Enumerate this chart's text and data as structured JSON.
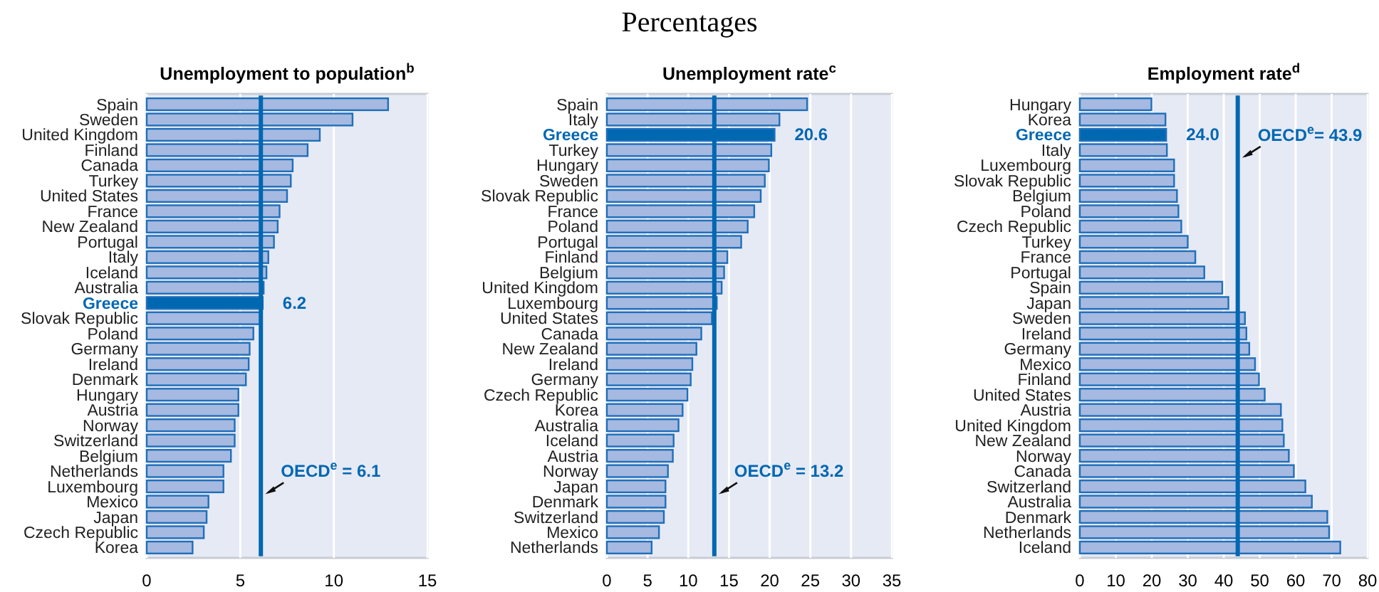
{
  "chart_data": [
    {
      "type": "bar",
      "orientation": "horizontal",
      "title": "Unemployment to population$^{b}$",
      "annotations": [
        "Percentages"
      ],
      "categories": [
        "Spain",
        "Sweden",
        "United Kingdom",
        "Finland",
        "Canada",
        "Turkey",
        "United States",
        "France",
        "New Zealand",
        "Portugal",
        "Italy",
        "Iceland",
        "Australia",
        "Greece",
        "Slovak Republic",
        "Poland",
        "Germany",
        "Ireland",
        "Denmark",
        "Hungary",
        "Austria",
        "Norway",
        "Switzerland",
        "Belgium",
        "Netherlands",
        "Luxembourg",
        "Mexico",
        "Japan",
        "Czech Republic",
        "Korea"
      ],
      "values": [
        12.9,
        11.0,
        9.25,
        8.6,
        7.8,
        7.7,
        7.5,
        7.1,
        7.0,
        6.8,
        6.5,
        6.4,
        6.25,
        6.2,
        6.05,
        5.7,
        5.5,
        5.45,
        5.3,
        4.9,
        4.9,
        4.7,
        4.7,
        4.5,
        4.1,
        4.1,
        3.3,
        3.2,
        3.05,
        2.45
      ],
      "colors": [
        "#a6b9e0",
        "#a6b9e0",
        "#a6b9e0",
        "#a6b9e0",
        "#a6b9e0",
        "#a6b9e0",
        "#a6b9e0",
        "#a6b9e0",
        "#a6b9e0",
        "#a6b9e0",
        "#a6b9e0",
        "#a6b9e0",
        "#a6b9e0",
        "#0067b1",
        "#a6b9e0",
        "#a6b9e0",
        "#a6b9e0",
        "#a6b9e0",
        "#a6b9e0",
        "#a6b9e0",
        "#a6b9e0",
        "#a6b9e0",
        "#a6b9e0",
        "#a6b9e0",
        "#a6b9e0",
        "#a6b9e0",
        "#a6b9e0",
        "#a6b9e0",
        "#a6b9e0",
        "#a6b9e0"
      ],
      "value_labels": [
        null,
        null,
        null,
        null,
        null,
        null,
        null,
        null,
        null,
        null,
        null,
        null,
        null,
        "6.2",
        null,
        null,
        null,
        null,
        null,
        null,
        null,
        null,
        null,
        null,
        null,
        null,
        null,
        null,
        null,
        null
      ],
      "xlim": [
        0,
        15
      ],
      "xticks": [
        0,
        5,
        10,
        15
      ],
      "grid": "x",
      "ref_lines": [
        {
          "axis": "x",
          "value": 6.1,
          "label": "OECD$^{e}$ = 6.1",
          "color": "#0067b1"
        }
      ]
    },
    {
      "type": "bar",
      "orientation": "horizontal",
      "title": "Unemployment rate$^{c}$",
      "categories": [
        "Spain",
        "Italy",
        "Greece",
        "Turkey",
        "Hungary",
        "Sweden",
        "Slovak Republic",
        "France",
        "Poland",
        "Portugal",
        "Finland",
        "Belgium",
        "United Kingdom",
        "Luxembourg",
        "United States",
        "Canada",
        "New Zealand",
        "Ireland",
        "Germany",
        "Czech Republic",
        "Korea",
        "Australia",
        "Iceland",
        "Austria",
        "Norway",
        "Japan",
        "Denmark",
        "Switzerland",
        "Mexico",
        "Netherlands"
      ],
      "values": [
        24.6,
        21.2,
        20.6,
        20.2,
        19.9,
        19.4,
        18.9,
        18.1,
        17.3,
        16.5,
        14.8,
        14.4,
        14.1,
        13.5,
        12.9,
        11.6,
        11.0,
        10.5,
        10.3,
        9.9,
        9.3,
        8.8,
        8.2,
        8.1,
        7.5,
        7.2,
        7.2,
        7.0,
        6.4,
        5.5
      ],
      "colors": [
        "#a6b9e0",
        "#a6b9e0",
        "#0067b1",
        "#a6b9e0",
        "#a6b9e0",
        "#a6b9e0",
        "#a6b9e0",
        "#a6b9e0",
        "#a6b9e0",
        "#a6b9e0",
        "#a6b9e0",
        "#a6b9e0",
        "#a6b9e0",
        "#a6b9e0",
        "#a6b9e0",
        "#a6b9e0",
        "#a6b9e0",
        "#a6b9e0",
        "#a6b9e0",
        "#a6b9e0",
        "#a6b9e0",
        "#a6b9e0",
        "#a6b9e0",
        "#a6b9e0",
        "#a6b9e0",
        "#a6b9e0",
        "#a6b9e0",
        "#a6b9e0",
        "#a6b9e0",
        "#a6b9e0"
      ],
      "value_labels": [
        null,
        null,
        "20.6",
        null,
        null,
        null,
        null,
        null,
        null,
        null,
        null,
        null,
        null,
        null,
        null,
        null,
        null,
        null,
        null,
        null,
        null,
        null,
        null,
        null,
        null,
        null,
        null,
        null,
        null,
        null
      ],
      "xlim": [
        0,
        35
      ],
      "xticks": [
        0,
        5,
        10,
        15,
        20,
        25,
        30,
        35
      ],
      "grid": "x",
      "ref_lines": [
        {
          "axis": "x",
          "value": 13.2,
          "label": "OECD$^{e}$ = 13.2",
          "color": "#0067b1"
        }
      ]
    },
    {
      "type": "bar",
      "orientation": "horizontal",
      "title": "Employment rate$^{d}$",
      "categories": [
        "Hungary",
        "Korea",
        "Greece",
        "Italy",
        "Luxembourg",
        "Slovak Republic",
        "Belgium",
        "Poland",
        "Czech Republic",
        "Turkey",
        "France",
        "Portugal",
        "Spain",
        "Japan",
        "Sweden",
        "Ireland",
        "Germany",
        "Mexico",
        "Finland",
        "United States",
        "Austria",
        "United Kingdom",
        "New Zealand",
        "Norway",
        "Canada",
        "Switzerland",
        "Australia",
        "Denmark",
        "Netherlands",
        "Iceland"
      ],
      "values": [
        19.9,
        23.8,
        24.0,
        24.2,
        26.2,
        26.2,
        27.0,
        27.4,
        28.2,
        30.0,
        32.1,
        34.6,
        39.6,
        41.3,
        45.9,
        46.3,
        47.1,
        48.7,
        49.8,
        51.4,
        55.9,
        56.3,
        56.7,
        58.1,
        59.5,
        62.7,
        64.5,
        68.8,
        69.3,
        72.4
      ],
      "colors": [
        "#a6b9e0",
        "#a6b9e0",
        "#0067b1",
        "#a6b9e0",
        "#a6b9e0",
        "#a6b9e0",
        "#a6b9e0",
        "#a6b9e0",
        "#a6b9e0",
        "#a6b9e0",
        "#a6b9e0",
        "#a6b9e0",
        "#a6b9e0",
        "#a6b9e0",
        "#a6b9e0",
        "#a6b9e0",
        "#a6b9e0",
        "#a6b9e0",
        "#a6b9e0",
        "#a6b9e0",
        "#a6b9e0",
        "#a6b9e0",
        "#a6b9e0",
        "#a6b9e0",
        "#a6b9e0",
        "#a6b9e0",
        "#a6b9e0",
        "#a6b9e0",
        "#a6b9e0",
        "#a6b9e0"
      ],
      "value_labels": [
        null,
        null,
        "24.0",
        null,
        null,
        null,
        null,
        null,
        null,
        null,
        null,
        null,
        null,
        null,
        null,
        null,
        null,
        null,
        null,
        null,
        null,
        null,
        null,
        null,
        null,
        null,
        null,
        null,
        null,
        null
      ],
      "xlim": [
        0,
        80
      ],
      "xticks": [
        0,
        10,
        20,
        30,
        40,
        50,
        60,
        70,
        80
      ],
      "grid": "x",
      "ref_lines": [
        {
          "axis": "x",
          "value": 43.9,
          "label": "OECD$^{e}$= 43.9",
          "color": "#0067b1"
        }
      ]
    }
  ]
}
